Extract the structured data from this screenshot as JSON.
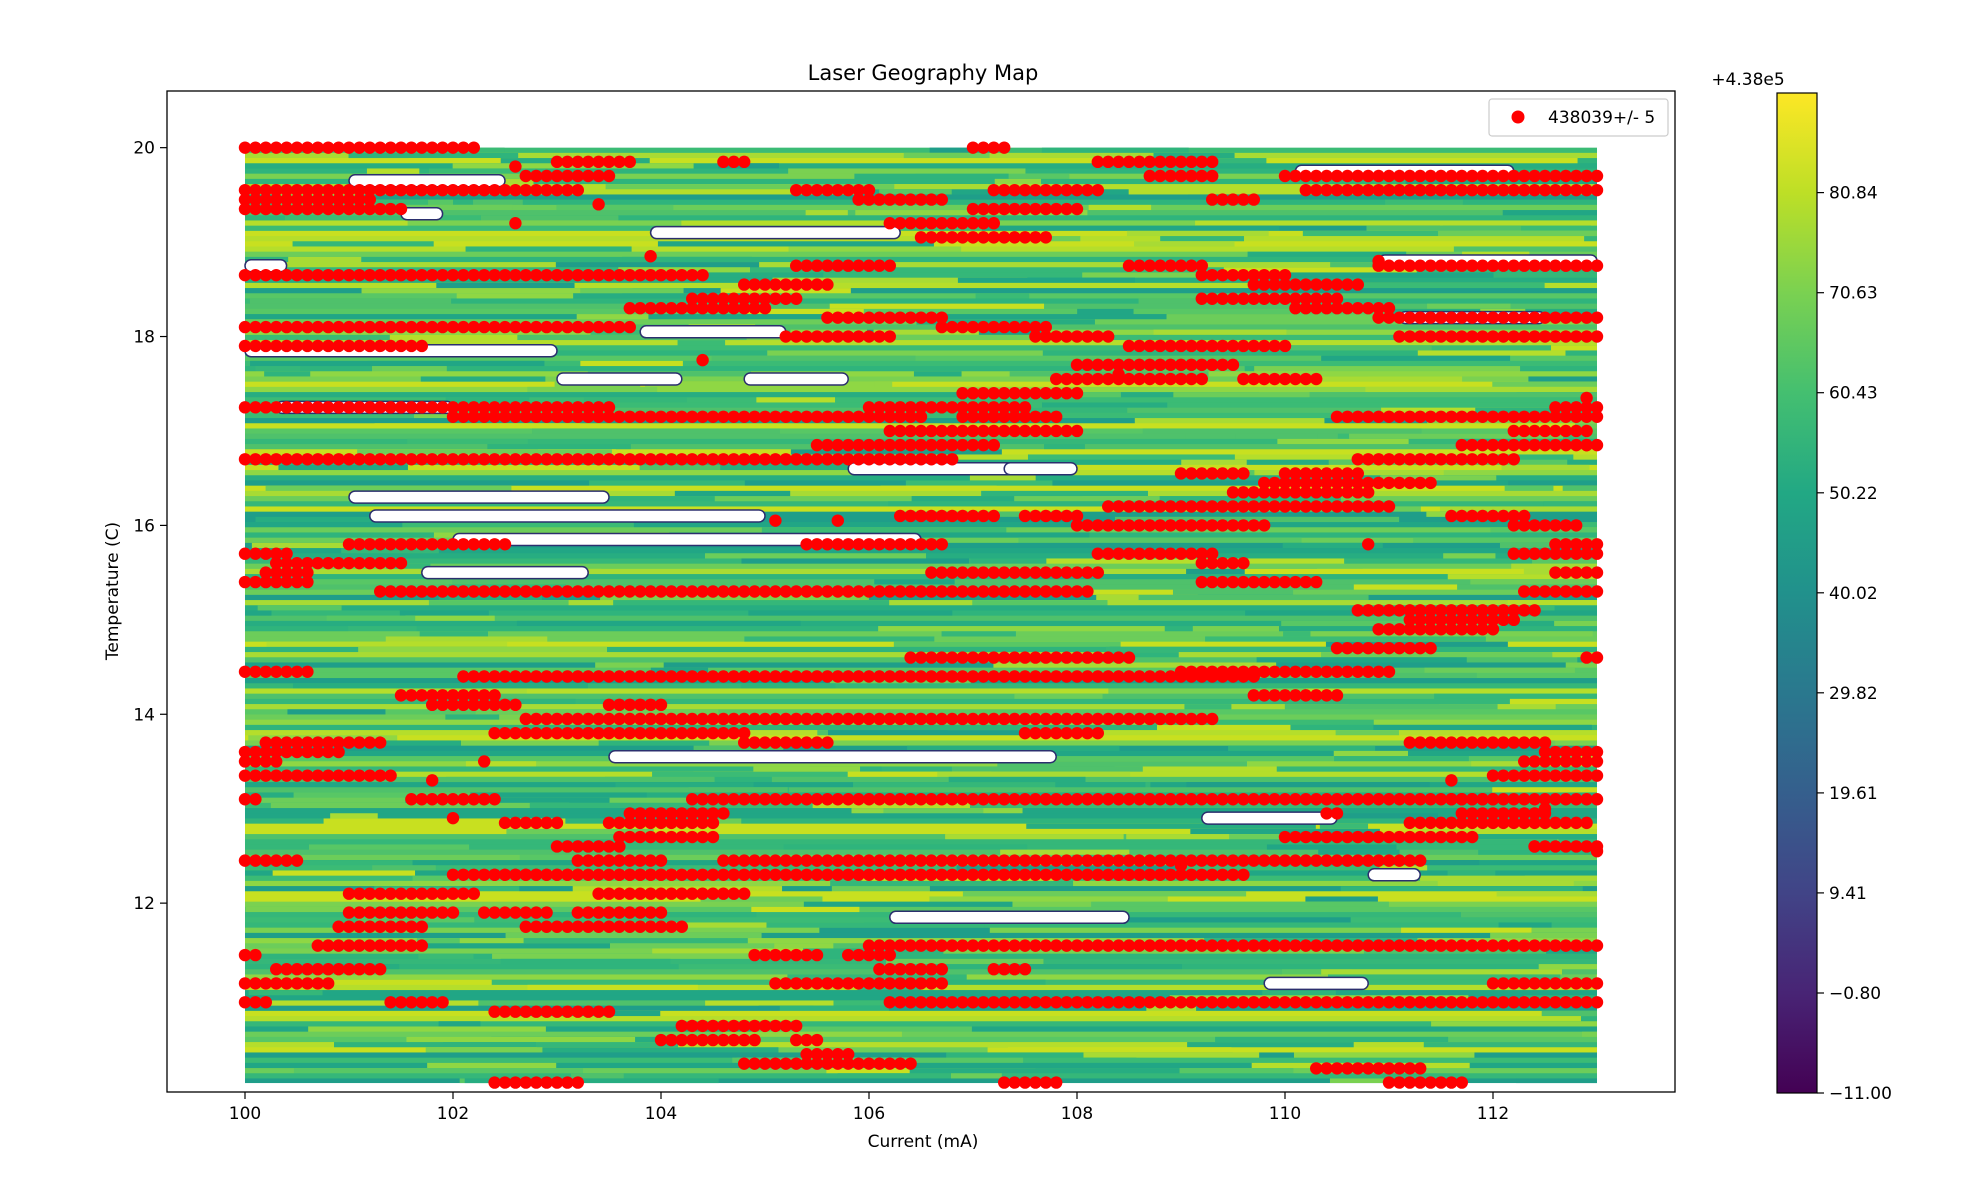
{
  "chart_data": {
    "type": "heatmap",
    "title": "Laser Geography Map",
    "xlabel": "Current (mA)",
    "ylabel": "Temperature (C)",
    "xlim": [
      99.25,
      113.75
    ],
    "ylim": [
      10.0,
      20.6
    ],
    "data_extent": {
      "x": [
        100,
        113
      ],
      "y": [
        10.1,
        20.0
      ]
    },
    "xticks": [
      100,
      102,
      104,
      106,
      108,
      110,
      112
    ],
    "yticks": [
      12,
      14,
      16,
      18,
      20
    ],
    "series": [
      {
        "name": "438039+/- 5",
        "type": "scatter",
        "color": "#ff0000"
      }
    ],
    "legend": {
      "location": "upper right",
      "entries": [
        "438039+/- 5"
      ]
    },
    "colorbar": {
      "offset_label": "+4.38e5",
      "colormap": "viridis",
      "range": [
        -11.0,
        91.0
      ],
      "ticks": [
        "80.84",
        "70.63",
        "60.43",
        "50.22",
        "40.02",
        "29.82",
        "19.61",
        "9.41",
        "−0.80",
        "−11.00"
      ]
    },
    "scatter_rows": [
      {
        "y": 20.0,
        "segments": [
          [
            100,
            102.2
          ],
          [
            107.0,
            107.3
          ]
        ]
      },
      {
        "y": 19.85,
        "segments": [
          [
            103.0,
            103.7
          ],
          [
            104.6,
            104.8
          ],
          [
            108.2,
            108.7
          ],
          [
            108.8,
            109.3
          ]
        ]
      },
      {
        "y": 19.7,
        "segments": [
          [
            102.7,
            103.5
          ],
          [
            108.7,
            109.3
          ],
          [
            110.0,
            113
          ]
        ]
      },
      {
        "y": 19.55,
        "segments": [
          [
            100,
            103.2
          ],
          [
            105.3,
            106.0
          ],
          [
            107.2,
            108.2
          ],
          [
            110.2,
            113
          ]
        ]
      },
      {
        "y": 19.45,
        "segments": [
          [
            100,
            101.2
          ],
          [
            105.9,
            106.7
          ],
          [
            109.3,
            109.7
          ]
        ]
      },
      {
        "y": 19.35,
        "segments": [
          [
            100,
            101.5
          ],
          [
            107.0,
            108.0
          ]
        ]
      },
      {
        "y": 19.2,
        "segments": [
          [
            106.2,
            107.2
          ]
        ]
      },
      {
        "y": 19.05,
        "segments": [
          [
            106.5,
            107.7
          ]
        ]
      },
      {
        "y": 18.75,
        "segments": [
          [
            105.3,
            106.2
          ],
          [
            108.5,
            109.2
          ],
          [
            110.9,
            113
          ]
        ]
      },
      {
        "y": 18.65,
        "segments": [
          [
            100,
            104.4
          ],
          [
            109.2,
            110.0
          ]
        ]
      },
      {
        "y": 18.55,
        "segments": [
          [
            104.8,
            105.6
          ],
          [
            109.7,
            110.7
          ]
        ]
      },
      {
        "y": 18.4,
        "segments": [
          [
            104.3,
            105.3
          ],
          [
            109.2,
            110.5
          ]
        ]
      },
      {
        "y": 18.3,
        "segments": [
          [
            103.7,
            105.0
          ],
          [
            110.1,
            111.0
          ]
        ]
      },
      {
        "y": 18.2,
        "segments": [
          [
            105.6,
            106.7
          ],
          [
            110.9,
            113
          ]
        ]
      },
      {
        "y": 18.1,
        "segments": [
          [
            100,
            103.7
          ],
          [
            106.7,
            107.7
          ]
        ]
      },
      {
        "y": 18.0,
        "segments": [
          [
            105.2,
            106.2
          ],
          [
            107.6,
            108.3
          ],
          [
            111.1,
            113
          ]
        ]
      },
      {
        "y": 17.9,
        "segments": [
          [
            100,
            101.7
          ],
          [
            108.5,
            110.0
          ]
        ]
      },
      {
        "y": 17.7,
        "segments": [
          [
            108.0,
            109.5
          ]
        ]
      },
      {
        "y": 17.55,
        "segments": [
          [
            107.8,
            109.2
          ],
          [
            109.6,
            110.3
          ]
        ]
      },
      {
        "y": 17.4,
        "segments": [
          [
            106.9,
            108.0
          ]
        ]
      },
      {
        "y": 17.25,
        "segments": [
          [
            100,
            103.5
          ],
          [
            106.0,
            107.5
          ],
          [
            112.6,
            113
          ]
        ]
      },
      {
        "y": 17.15,
        "segments": [
          [
            102.0,
            106.5
          ],
          [
            106.9,
            107.8
          ],
          [
            110.5,
            113
          ]
        ]
      },
      {
        "y": 17.0,
        "segments": [
          [
            106.2,
            108.0
          ],
          [
            112.2,
            112.9
          ]
        ]
      },
      {
        "y": 16.85,
        "segments": [
          [
            105.5,
            107.2
          ],
          [
            111.7,
            113
          ]
        ]
      },
      {
        "y": 16.7,
        "segments": [
          [
            100,
            106.8
          ],
          [
            110.7,
            112.2
          ]
        ]
      },
      {
        "y": 16.55,
        "segments": [
          [
            109.0,
            109.6
          ],
          [
            110.0,
            110.7
          ]
        ]
      },
      {
        "y": 16.45,
        "segments": [
          [
            109.8,
            111.4
          ]
        ]
      },
      {
        "y": 16.35,
        "segments": [
          [
            109.5,
            110.8
          ]
        ]
      },
      {
        "y": 16.2,
        "segments": [
          [
            108.3,
            111.0
          ]
        ]
      },
      {
        "y": 16.1,
        "segments": [
          [
            106.3,
            107.2
          ],
          [
            107.5,
            108.0
          ],
          [
            111.6,
            112.3
          ]
        ]
      },
      {
        "y": 16.0,
        "segments": [
          [
            108.0,
            109.8
          ],
          [
            112.2,
            112.8
          ]
        ]
      },
      {
        "y": 15.8,
        "segments": [
          [
            101.0,
            102.5
          ],
          [
            105.4,
            106.7
          ],
          [
            112.6,
            113
          ]
        ]
      },
      {
        "y": 15.7,
        "segments": [
          [
            100,
            100.4
          ],
          [
            108.2,
            109.3
          ],
          [
            112.2,
            113
          ]
        ]
      },
      {
        "y": 15.6,
        "segments": [
          [
            100.3,
            101.5
          ],
          [
            109.2,
            109.6
          ]
        ]
      },
      {
        "y": 15.5,
        "segments": [
          [
            100.2,
            100.6
          ],
          [
            106.6,
            108.2
          ],
          [
            112.6,
            113
          ]
        ]
      },
      {
        "y": 15.4,
        "segments": [
          [
            100,
            100.6
          ],
          [
            109.2,
            110.3
          ]
        ]
      },
      {
        "y": 15.3,
        "segments": [
          [
            101.3,
            108.1
          ],
          [
            112.3,
            113
          ]
        ]
      },
      {
        "y": 15.1,
        "segments": [
          [
            110.7,
            112.4
          ]
        ]
      },
      {
        "y": 15.0,
        "segments": [
          [
            111.2,
            112.2
          ]
        ]
      },
      {
        "y": 14.9,
        "segments": [
          [
            110.9,
            112.0
          ]
        ]
      },
      {
        "y": 14.7,
        "segments": [
          [
            110.5,
            111.4
          ]
        ]
      },
      {
        "y": 14.6,
        "segments": [
          [
            106.4,
            108.5
          ],
          [
            112.9,
            113
          ]
        ]
      },
      {
        "y": 14.45,
        "segments": [
          [
            100,
            100.6
          ],
          [
            109.0,
            111.0
          ]
        ]
      },
      {
        "y": 14.4,
        "segments": [
          [
            102.1,
            109.7
          ]
        ]
      },
      {
        "y": 14.2,
        "segments": [
          [
            101.5,
            102.4
          ],
          [
            109.7,
            110.5
          ]
        ]
      },
      {
        "y": 14.1,
        "segments": [
          [
            101.8,
            102.6
          ],
          [
            103.5,
            104.0
          ]
        ]
      },
      {
        "y": 13.95,
        "segments": [
          [
            102.7,
            109.3
          ]
        ]
      },
      {
        "y": 13.8,
        "segments": [
          [
            102.4,
            103.3
          ],
          [
            103.3,
            104.8
          ],
          [
            107.5,
            108.2
          ]
        ]
      },
      {
        "y": 13.7,
        "segments": [
          [
            100.2,
            101.3
          ],
          [
            104.8,
            105.6
          ],
          [
            111.2,
            112.5
          ]
        ]
      },
      {
        "y": 13.6,
        "segments": [
          [
            100,
            100.9
          ],
          [
            112.5,
            113
          ]
        ]
      },
      {
        "y": 13.5,
        "segments": [
          [
            100,
            100.3
          ],
          [
            112.3,
            113
          ]
        ]
      },
      {
        "y": 13.35,
        "segments": [
          [
            100,
            101.4
          ],
          [
            112.0,
            113
          ]
        ]
      },
      {
        "y": 13.1,
        "segments": [
          [
            100,
            100.1
          ],
          [
            101.6,
            102.4
          ],
          [
            104.3,
            112.0
          ],
          [
            111.6,
            113
          ]
        ]
      },
      {
        "y": 12.95,
        "segments": [
          [
            103.7,
            104.6
          ],
          [
            110.4,
            110.5
          ],
          [
            111.7,
            112.5
          ]
        ]
      },
      {
        "y": 12.85,
        "segments": [
          [
            102.5,
            103.0
          ],
          [
            103.5,
            104.5
          ],
          [
            111.2,
            112.9
          ]
        ]
      },
      {
        "y": 12.7,
        "segments": [
          [
            103.6,
            104.5
          ],
          [
            110.0,
            111.8
          ]
        ]
      },
      {
        "y": 12.6,
        "segments": [
          [
            103.0,
            103.6
          ],
          [
            112.4,
            113
          ]
        ]
      },
      {
        "y": 12.45,
        "segments": [
          [
            100,
            100.5
          ],
          [
            103.2,
            104.0
          ],
          [
            104.6,
            111.3
          ]
        ]
      },
      {
        "y": 12.3,
        "segments": [
          [
            102.4,
            103.2
          ],
          [
            103.6,
            104.1
          ],
          [
            102.0,
            109.6
          ]
        ]
      },
      {
        "y": 12.1,
        "segments": [
          [
            101.0,
            102.2
          ],
          [
            103.4,
            104.8
          ]
        ]
      },
      {
        "y": 11.9,
        "segments": [
          [
            101.0,
            102.0
          ],
          [
            102.3,
            102.9
          ],
          [
            103.2,
            104.0
          ]
        ]
      },
      {
        "y": 11.75,
        "segments": [
          [
            100.9,
            101.7
          ],
          [
            102.7,
            104.2
          ]
        ]
      },
      {
        "y": 11.55,
        "segments": [
          [
            100.7,
            101.7
          ],
          [
            106.0,
            113
          ]
        ]
      },
      {
        "y": 11.45,
        "segments": [
          [
            100,
            100.1
          ],
          [
            104.9,
            105.5
          ],
          [
            105.8,
            106.2
          ]
        ]
      },
      {
        "y": 11.3,
        "segments": [
          [
            100.3,
            101.3
          ],
          [
            106.1,
            106.7
          ],
          [
            107.2,
            107.5
          ]
        ]
      },
      {
        "y": 11.15,
        "segments": [
          [
            100,
            100.8
          ],
          [
            105.1,
            106.7
          ],
          [
            112.0,
            113
          ]
        ]
      },
      {
        "y": 10.95,
        "segments": [
          [
            100,
            100.2
          ],
          [
            101.4,
            101.9
          ],
          [
            106.2,
            113
          ]
        ]
      },
      {
        "y": 10.85,
        "segments": [
          [
            102.4,
            103.5
          ]
        ]
      },
      {
        "y": 10.7,
        "segments": [
          [
            104.2,
            105.3
          ]
        ]
      },
      {
        "y": 10.55,
        "segments": [
          [
            104.0,
            104.9
          ],
          [
            105.3,
            105.5
          ]
        ]
      },
      {
        "y": 10.4,
        "segments": [
          [
            105.4,
            105.8
          ]
        ]
      },
      {
        "y": 10.3,
        "segments": [
          [
            104.8,
            105.2
          ],
          [
            105.3,
            106.4
          ]
        ]
      },
      {
        "y": 10.25,
        "segments": [
          [
            110.3,
            111.3
          ]
        ]
      },
      {
        "y": 10.1,
        "segments": [
          [
            102.4,
            103.2
          ],
          [
            107.3,
            107.8
          ],
          [
            111.0,
            111.7
          ]
        ]
      }
    ],
    "scatter_isolated": [
      [
        102.6,
        19.2
      ],
      [
        103.4,
        19.4
      ],
      [
        103.9,
        18.85
      ],
      [
        102.6,
        19.8
      ],
      [
        104.4,
        17.75
      ],
      [
        110.9,
        18.8
      ],
      [
        110.8,
        15.8
      ],
      [
        112.9,
        17.35
      ],
      [
        112.9,
        16.85
      ],
      [
        102.3,
        13.5
      ],
      [
        101.8,
        13.3
      ],
      [
        102.0,
        12.9
      ],
      [
        111.6,
        13.3
      ],
      [
        112.5,
        13.0
      ],
      [
        112.4,
        12.6
      ],
      [
        113.0,
        12.55
      ],
      [
        109.0,
        12.4
      ],
      [
        105.1,
        16.05
      ],
      [
        105.7,
        16.05
      ],
      [
        108.4,
        17.6
      ]
    ],
    "white_gaps": [
      [
        101.0,
        19.65,
        102.5
      ],
      [
        103.9,
        19.1,
        106.3
      ],
      [
        100.0,
        18.75,
        100.4
      ],
      [
        101.5,
        19.3,
        101.9
      ],
      [
        103.8,
        18.05,
        105.2
      ],
      [
        100.0,
        17.85,
        103.0
      ],
      [
        103.0,
        17.55,
        104.2
      ],
      [
        100.3,
        17.25,
        102.0
      ],
      [
        104.8,
        17.55,
        105.8
      ],
      [
        101.0,
        16.3,
        103.5
      ],
      [
        101.2,
        16.1,
        105.0
      ],
      [
        102.0,
        15.85,
        106.5
      ],
      [
        101.7,
        15.5,
        103.3
      ],
      [
        103.5,
        13.55,
        107.8
      ],
      [
        109.2,
        12.9,
        110.5
      ],
      [
        110.1,
        19.75,
        112.2
      ],
      [
        110.9,
        18.8,
        113.0
      ],
      [
        111.1,
        18.2,
        112.5
      ],
      [
        106.2,
        11.85,
        108.5
      ],
      [
        109.8,
        11.15,
        110.8
      ],
      [
        105.8,
        16.6,
        107.5
      ],
      [
        107.3,
        16.6,
        108.0
      ],
      [
        110.8,
        12.3,
        111.3
      ]
    ]
  }
}
